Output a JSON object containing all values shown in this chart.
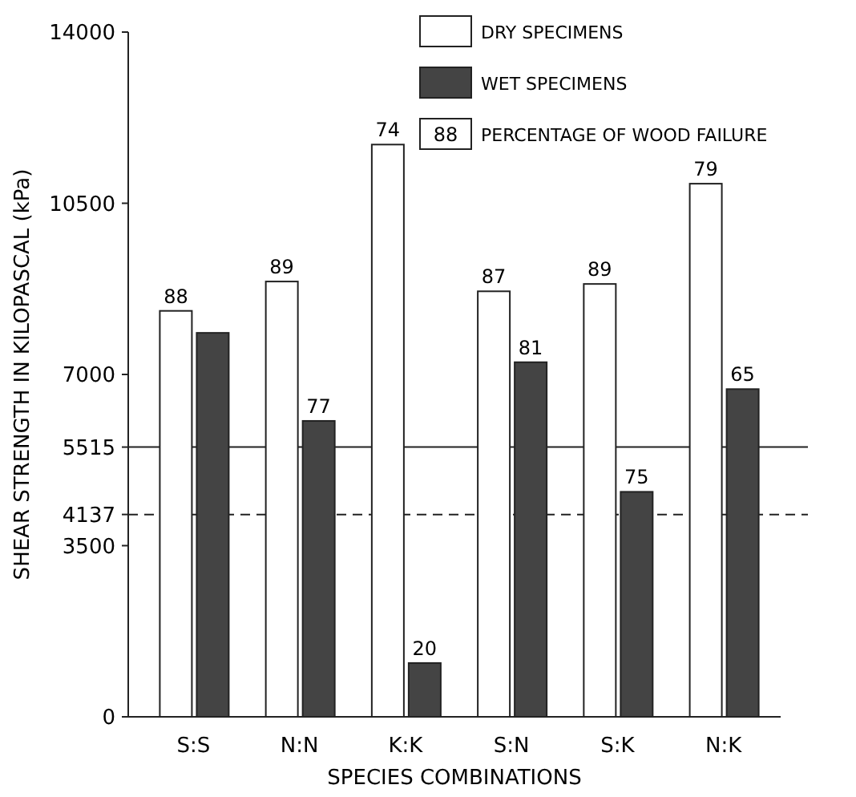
{
  "chart_data": {
    "type": "bar",
    "xlabel": "SPECIES COMBINATIONS",
    "ylabel": "SHEAR STRENGTH IN KILOPASCAL (kPa)",
    "categories": [
      "S:S",
      "N:N",
      "K:K",
      "S:N",
      "S:K",
      "N:K"
    ],
    "series": [
      {
        "name": "DRY SPECIMENS",
        "color": "#ffffff",
        "values": [
          8300,
          8900,
          11700,
          8700,
          8850,
          10900
        ]
      },
      {
        "name": "WET SPECIMENS",
        "color": "#444444",
        "values": [
          7850,
          6050,
          1100,
          7250,
          4600,
          6700
        ]
      }
    ],
    "ylim": [
      0,
      14000
    ],
    "yticks": [
      0,
      3500,
      4137,
      5515,
      7000,
      10500,
      14000
    ],
    "ref_lines": [
      {
        "axis": "y",
        "value": 5515,
        "line_style": "solid"
      },
      {
        "axis": "y",
        "value": 4137,
        "line_style": "dashed"
      }
    ],
    "annotations": [
      "88",
      "PERCENTAGE OF WOOD FAILURE",
      {
        "text": "88",
        "x": "S:S",
        "y": 8300
      },
      {
        "text": "89",
        "x": "N:N",
        "y": 8900
      },
      {
        "text": "74",
        "x": "K:K",
        "y": 11700
      },
      {
        "text": "87",
        "x": "S:N",
        "y": 8700
      },
      {
        "text": "89",
        "x": "S:K",
        "y": 8850
      },
      {
        "text": "79",
        "x": "N:K",
        "y": 10900
      },
      {
        "text": "77",
        "x": "N:N",
        "y": 6050
      },
      {
        "text": "20",
        "x": "K:K",
        "y": 1100
      },
      {
        "text": "81",
        "x": "S:N",
        "y": 7250
      },
      {
        "text": "75",
        "x": "S:K",
        "y": 4600
      },
      {
        "text": "65",
        "x": "N:K",
        "y": 6700
      }
    ],
    "legend": "top right",
    "grid": false
  }
}
